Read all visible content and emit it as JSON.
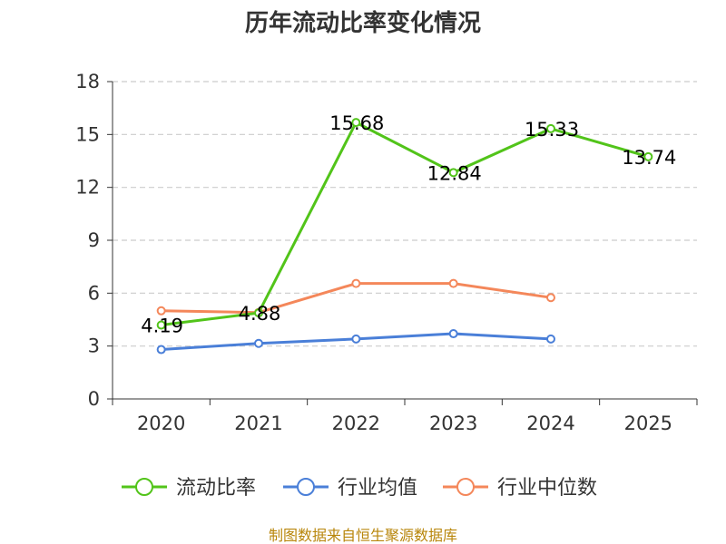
{
  "chart_data": {
    "type": "line",
    "title": "历年流动比率变化情况",
    "categories": [
      "2020",
      "2021",
      "2022",
      "2023",
      "2024",
      "2025"
    ],
    "y_ticks": [
      "0",
      "3",
      "6",
      "9",
      "12",
      "15",
      "18"
    ],
    "ylim": [
      0,
      18
    ],
    "grid": true,
    "legend_position": "bottom",
    "series": [
      {
        "name": "流动比率",
        "color": "#52c41a",
        "values": [
          4.19,
          4.88,
          15.68,
          12.84,
          15.33,
          13.74
        ],
        "labels": [
          "4.19",
          "4.88",
          "15.68",
          "12.84",
          "15.33",
          "13.74"
        ]
      },
      {
        "name": "行业均值",
        "color": "#4a7fd8",
        "values": [
          2.8,
          3.15,
          3.4,
          3.7,
          3.4,
          null
        ]
      },
      {
        "name": "行业中位数",
        "color": "#f4875a",
        "values": [
          5.0,
          4.9,
          6.55,
          6.55,
          5.75,
          null
        ]
      }
    ]
  },
  "footer": {
    "source": "制图数据来自恒生聚源数据库"
  }
}
